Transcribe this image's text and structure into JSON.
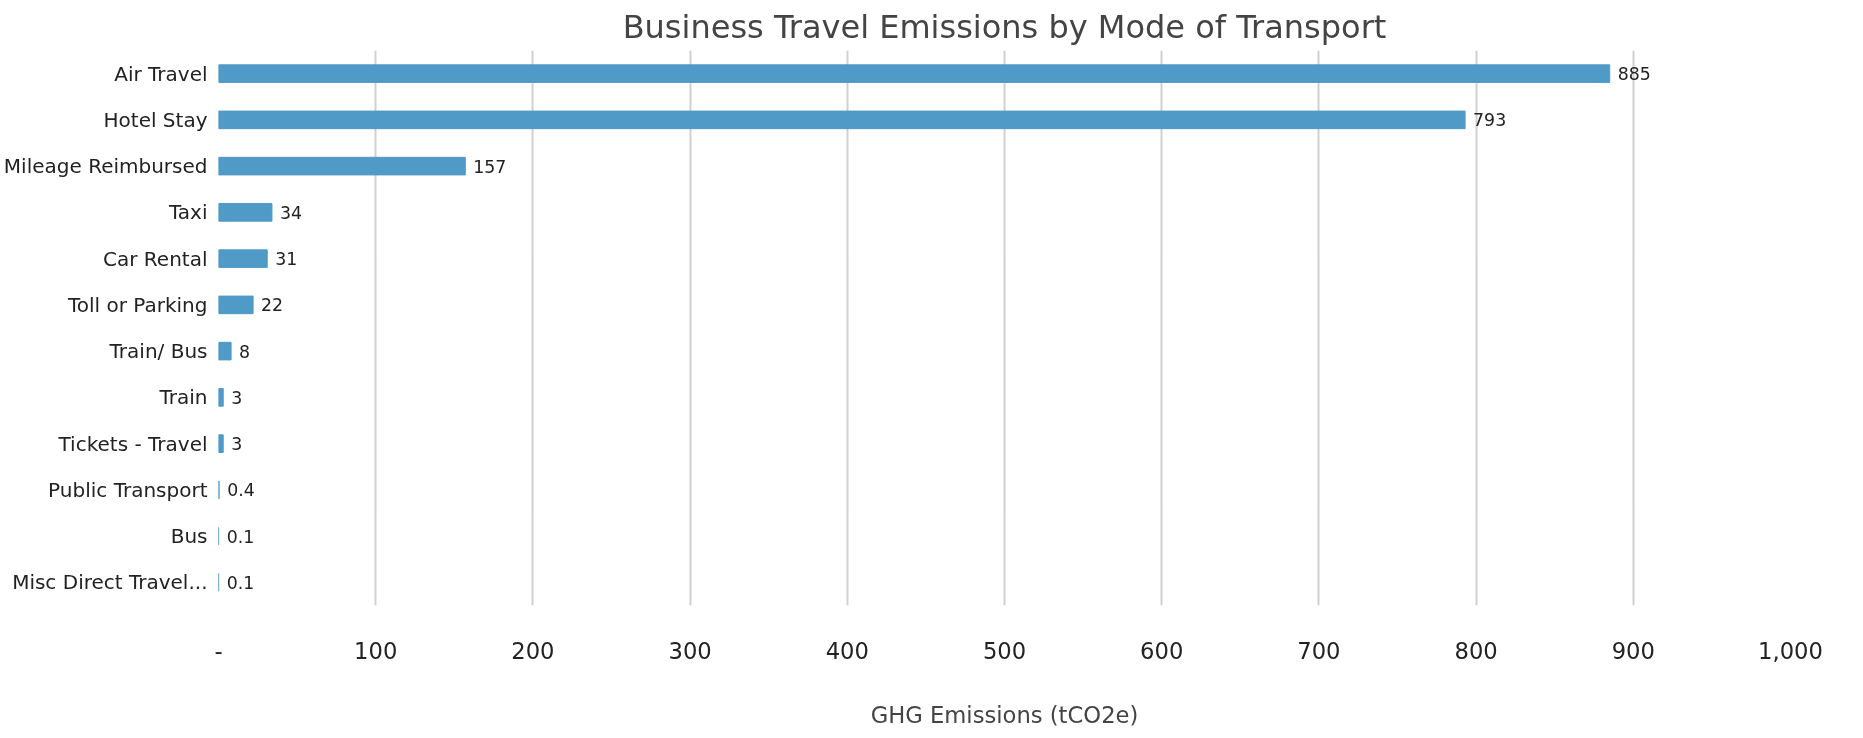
{
  "chart_data": {
    "type": "bar",
    "orientation": "horizontal",
    "title": "Business Travel Emissions by Mode of Transport",
    "xlabel": "GHG Emissions (tCO2e)",
    "categories": [
      "Air Travel",
      "Hotel Stay",
      "Mileage Reimbursed",
      "Taxi",
      "Car Rental",
      "Toll or Parking",
      "Train/ Bus",
      "Train",
      "Tickets - Travel",
      "Public Transport",
      "Bus",
      "Misc Direct Travel..."
    ],
    "values": [
      885,
      793,
      157,
      34,
      31,
      22,
      8,
      3,
      3,
      0.4,
      0.1,
      0.1
    ],
    "color": "#4f9ac7",
    "data_labels": true,
    "grid": "x",
    "xlim": [
      0,
      1000
    ],
    "xticks": [
      {
        "value": 0,
        "label": "-"
      },
      100,
      200,
      300,
      400,
      500,
      600,
      700,
      800,
      900,
      {
        "value": 1000,
        "label": "1,000"
      }
    ]
  }
}
